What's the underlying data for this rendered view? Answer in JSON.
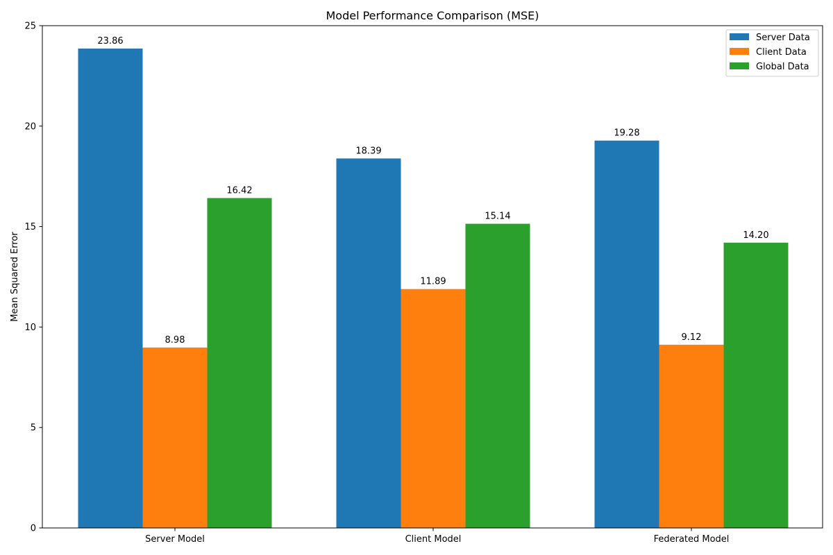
{
  "chart_data": {
    "type": "bar",
    "title": "Model Performance Comparison (MSE)",
    "xlabel": "",
    "ylabel": "Mean Squared Error",
    "categories": [
      "Server Model",
      "Client Model",
      "Federated Model"
    ],
    "series": [
      {
        "name": "Server Data",
        "color": "#1f77b4",
        "values": [
          23.86,
          18.39,
          19.28
        ],
        "labels": [
          "23.86",
          "18.39",
          "19.28"
        ]
      },
      {
        "name": "Client Data",
        "color": "#ff7f0e",
        "values": [
          8.98,
          11.89,
          9.12
        ],
        "labels": [
          "8.98",
          "11.89",
          "9.12"
        ]
      },
      {
        "name": "Global Data",
        "color": "#2ca02c",
        "values": [
          16.42,
          15.14,
          14.2
        ],
        "labels": [
          "16.42",
          "15.14",
          "14.20"
        ]
      }
    ],
    "ylim": [
      0,
      25
    ],
    "yticks": [
      0,
      5,
      10,
      15,
      20,
      25
    ],
    "ytick_labels": [
      "0",
      "5",
      "10",
      "15",
      "20",
      "25"
    ],
    "grid": false,
    "legend_position": "top-right"
  }
}
